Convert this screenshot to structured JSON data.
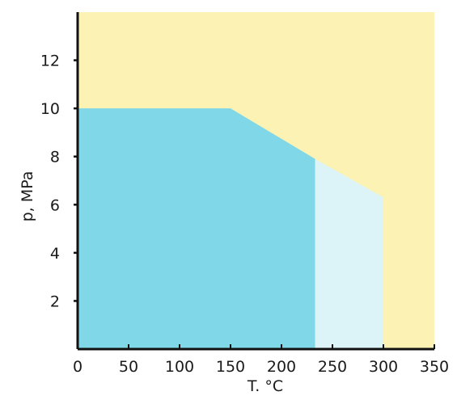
{
  "chart_data": {
    "type": "area",
    "xlabel": "T. °C",
    "ylabel": "p, MPa",
    "xlim": [
      0,
      350
    ],
    "ylim": [
      0,
      14
    ],
    "x_ticks": [
      0,
      50,
      100,
      150,
      200,
      250,
      300,
      350
    ],
    "y_ticks": [
      2,
      4,
      6,
      8,
      10,
      12
    ],
    "grid": false,
    "legend": "none",
    "regions": [
      {
        "points": [
          [
            0,
            0
          ],
          [
            0,
            14
          ],
          [
            350,
            14
          ],
          [
            350,
            0
          ]
        ],
        "color": "#fbf2b4"
      },
      {
        "points": [
          [
            0,
            0
          ],
          [
            0,
            10
          ],
          [
            150,
            10
          ],
          [
            233,
            7.9
          ],
          [
            233,
            0
          ]
        ],
        "color": "#7fd7e8"
      },
      {
        "points": [
          [
            233,
            0
          ],
          [
            233,
            7.9
          ],
          [
            300,
            6.3
          ],
          [
            300,
            0
          ]
        ],
        "color": "#dcf4f8"
      }
    ]
  }
}
